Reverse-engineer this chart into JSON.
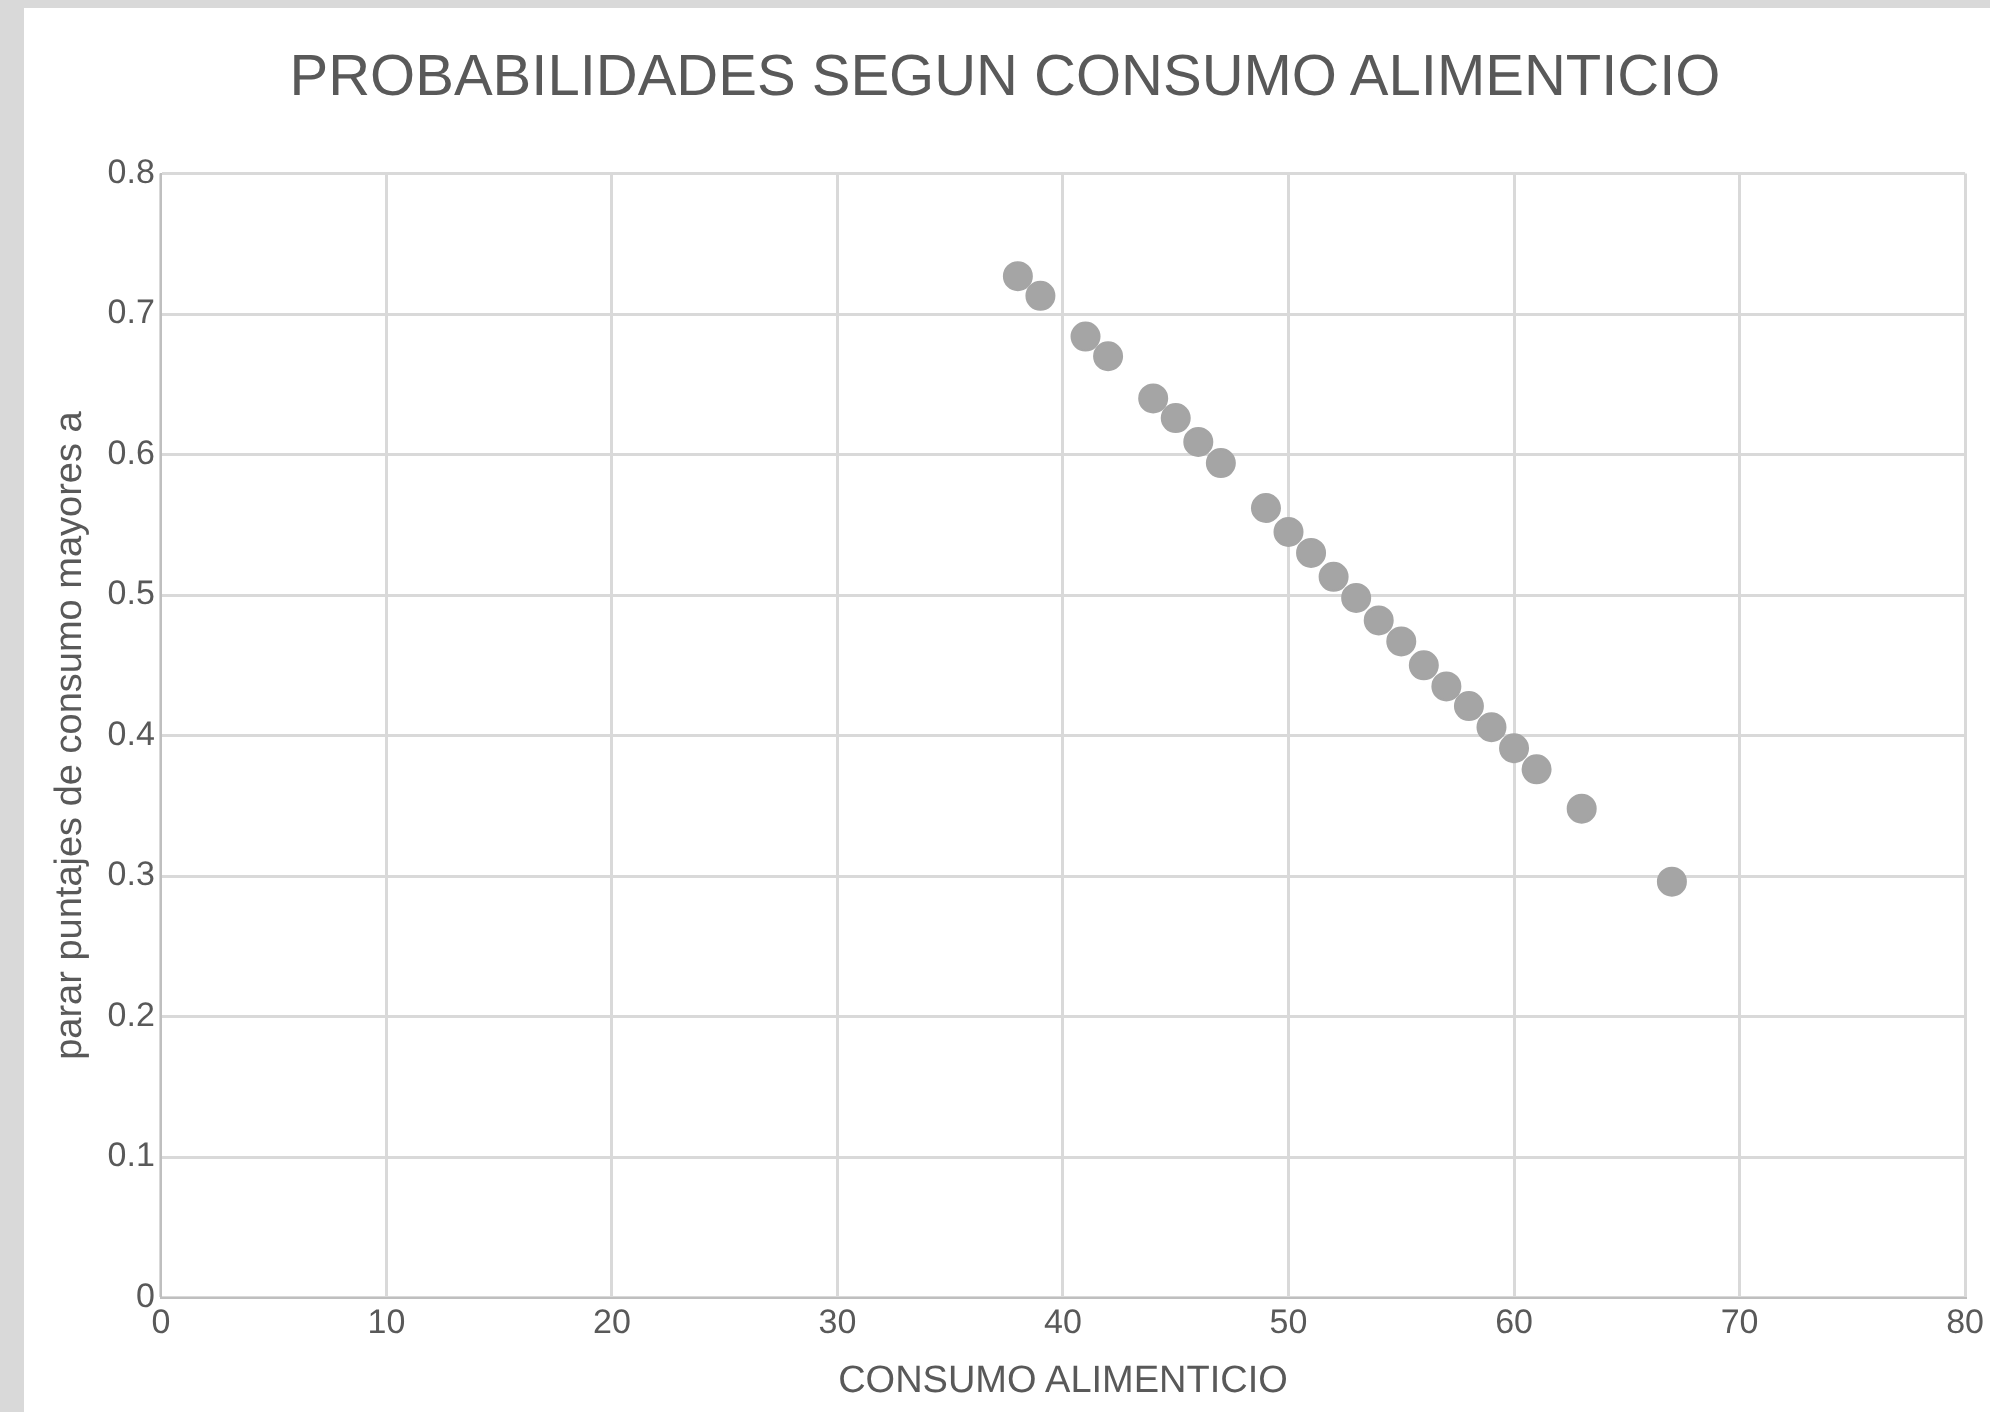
{
  "chart_data": {
    "type": "scatter",
    "title": "PROBABILIDADES SEGUN CONSUMO ALIMENTICIO",
    "xlabel": "CONSUMO ALIMENTICIO",
    "ylabel": "parar puntajes de consumo mayores a",
    "x": [
      38,
      39,
      41,
      42,
      44,
      45,
      46,
      47,
      49,
      50,
      51,
      52,
      53,
      54,
      55,
      56,
      57,
      58,
      59,
      60,
      61,
      63,
      67
    ],
    "series": [
      {
        "color": "#a5a5a5",
        "values": [
          0.727,
          0.713,
          0.684,
          0.67,
          0.64,
          0.626,
          0.609,
          0.594,
          0.562,
          0.545,
          0.53,
          0.513,
          0.498,
          0.482,
          0.467,
          0.45,
          0.435,
          0.421,
          0.406,
          0.391,
          0.376,
          0.348,
          0.296
        ]
      }
    ],
    "xlim": [
      0,
      80
    ],
    "xticks": [
      0,
      10,
      20,
      30,
      40,
      50,
      60,
      70,
      80
    ],
    "ylim": [
      0,
      0.8
    ],
    "yticks": [
      0,
      0.1,
      0.2,
      0.3,
      0.4,
      0.5,
      0.6,
      0.7,
      0.8
    ],
    "grid": true,
    "legend": false,
    "marker": "circle"
  }
}
